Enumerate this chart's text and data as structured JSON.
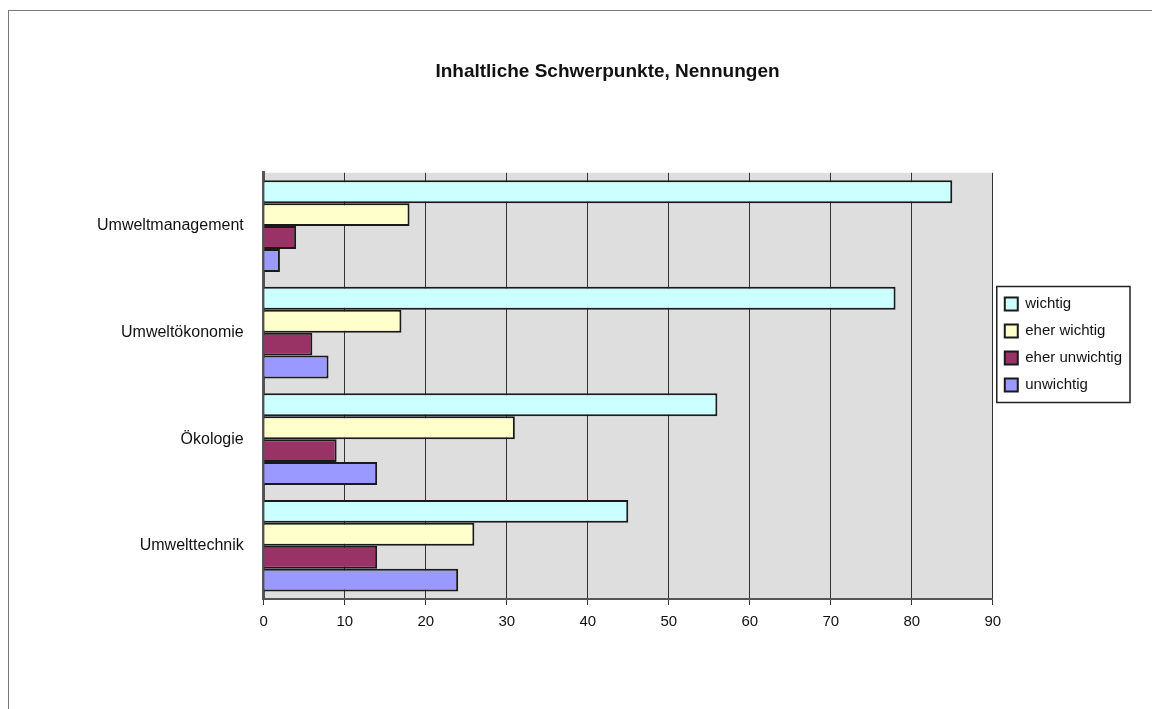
{
  "chart_data": {
    "type": "bar",
    "orientation": "horizontal",
    "title": "Inhaltliche Schwerpunkte, Nennungen",
    "categories": [
      "Umweltmanagement",
      "Umweltökonomie",
      "Ökologie",
      "Umwelttechnik"
    ],
    "series": [
      {
        "name": "wichtig",
        "color": "#ccffff",
        "values": [
          85,
          78,
          56,
          45
        ]
      },
      {
        "name": "eher wichtig",
        "color": "#ffffcc",
        "values": [
          18,
          17,
          31,
          26
        ]
      },
      {
        "name": "eher unwichtig",
        "color": "#993366",
        "values": [
          4,
          6,
          9,
          14
        ]
      },
      {
        "name": "unwichtig",
        "color": "#9999ff",
        "values": [
          2,
          8,
          14,
          24
        ]
      }
    ],
    "xlim": [
      0,
      90
    ],
    "xticks": [
      0,
      10,
      20,
      30,
      40,
      50,
      60,
      70,
      80,
      90
    ],
    "grid": "x",
    "legend": "right"
  }
}
